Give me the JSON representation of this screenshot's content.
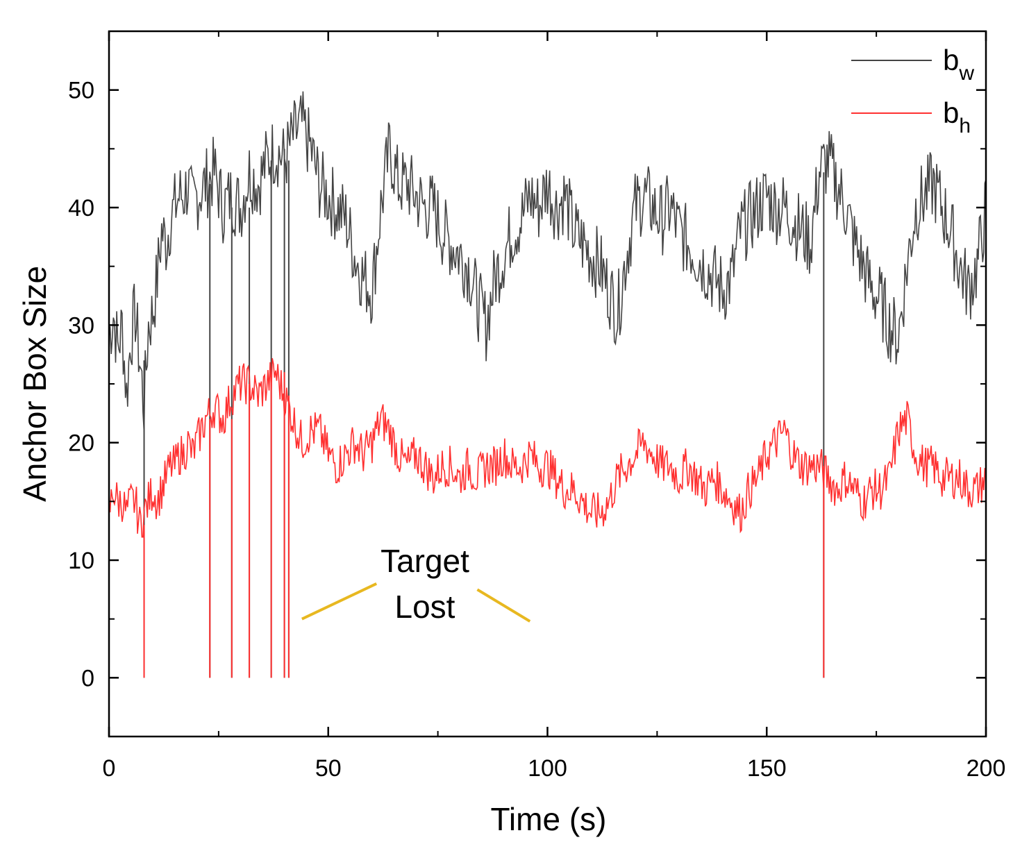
{
  "chart_data": {
    "type": "line",
    "title": "",
    "xlabel": "Time (s)",
    "ylabel": "Anchor Box Size",
    "xlim": [
      0,
      200
    ],
    "ylim": [
      -5,
      55
    ],
    "xticks": [
      0,
      50,
      100,
      150,
      200
    ],
    "yticks": [
      0,
      10,
      20,
      30,
      40,
      50
    ],
    "xtick_labels": [
      "0",
      "50",
      "100",
      "150",
      "200"
    ],
    "ytick_labels": [
      "0",
      "10",
      "20",
      "30",
      "40",
      "50"
    ],
    "grid": false,
    "legend_position": "top-right",
    "series": [
      {
        "name": "b_w",
        "base": "b",
        "sub": "w",
        "color": "#444444",
        "x": [
          0,
          1,
          2,
          3,
          4,
          5,
          6,
          7,
          8,
          9,
          10,
          11,
          12,
          13,
          14,
          15,
          16,
          17,
          18,
          19,
          20,
          22,
          24,
          26,
          28,
          30,
          32,
          34,
          36,
          38,
          40,
          42,
          44,
          46,
          48,
          50,
          52,
          54,
          56,
          58,
          60,
          62,
          64,
          66,
          68,
          70,
          72,
          74,
          76,
          78,
          80,
          82,
          84,
          86,
          88,
          90,
          92,
          94,
          96,
          98,
          100,
          102,
          104,
          106,
          108,
          110,
          112,
          114,
          116,
          118,
          120,
          122,
          124,
          126,
          128,
          130,
          132,
          134,
          136,
          138,
          140,
          142,
          144,
          146,
          148,
          150,
          152,
          154,
          156,
          158,
          160,
          162,
          164,
          166,
          168,
          170,
          172,
          174,
          176,
          178,
          180,
          182,
          184,
          186,
          188,
          190,
          192,
          194,
          196,
          198,
          200
        ],
        "y": [
          29,
          31,
          28,
          30,
          24,
          29,
          31,
          27,
          23,
          30,
          31,
          34,
          38,
          37,
          39,
          40,
          41,
          41,
          42,
          40,
          41,
          42,
          43,
          40,
          41,
          40,
          43,
          42,
          44,
          45,
          44,
          46,
          47,
          45,
          42,
          41,
          40,
          39,
          36,
          34,
          33,
          40,
          45,
          42,
          42,
          41,
          40,
          40,
          38,
          37,
          36,
          35,
          32,
          30,
          34,
          36,
          38,
          39,
          41,
          40,
          42,
          40,
          41,
          38,
          37,
          36,
          35,
          33,
          31,
          36,
          40,
          41,
          40,
          39,
          40,
          38,
          37,
          36,
          35,
          34,
          33,
          34,
          38,
          39,
          40,
          41,
          40,
          40,
          39,
          38,
          37,
          43,
          44,
          42,
          40,
          37,
          35,
          33,
          32,
          30,
          29,
          35,
          40,
          41,
          42,
          40,
          38,
          35,
          33,
          35,
          40
        ],
        "dropouts": [
          [
            8,
            0
          ],
          [
            23,
            0
          ],
          [
            28,
            0
          ],
          [
            32,
            0
          ],
          [
            37,
            0
          ],
          [
            40,
            0
          ],
          [
            41,
            0
          ],
          [
            163,
            0
          ]
        ]
      },
      {
        "name": "b_h",
        "base": "b",
        "sub": "h",
        "color": "#ff3030",
        "x": [
          0,
          1,
          2,
          3,
          4,
          5,
          6,
          7,
          8,
          9,
          10,
          11,
          12,
          13,
          14,
          15,
          16,
          17,
          18,
          19,
          20,
          22,
          24,
          26,
          28,
          30,
          32,
          34,
          36,
          38,
          40,
          42,
          44,
          46,
          48,
          50,
          52,
          54,
          56,
          58,
          60,
          62,
          64,
          66,
          68,
          70,
          72,
          74,
          76,
          78,
          80,
          82,
          84,
          86,
          88,
          90,
          92,
          94,
          96,
          98,
          100,
          102,
          104,
          106,
          108,
          110,
          112,
          114,
          116,
          118,
          120,
          122,
          124,
          126,
          128,
          130,
          132,
          134,
          136,
          138,
          140,
          142,
          144,
          146,
          148,
          150,
          152,
          154,
          156,
          158,
          160,
          162,
          164,
          166,
          168,
          170,
          172,
          174,
          176,
          178,
          180,
          182,
          184,
          186,
          188,
          190,
          192,
          194,
          196,
          198,
          200
        ],
        "y": [
          14,
          16,
          15,
          15,
          14,
          15,
          15,
          13,
          14,
          15,
          16,
          15,
          16,
          17,
          18,
          18,
          19,
          19,
          20,
          19,
          20,
          22,
          23,
          22,
          24,
          25,
          25,
          24,
          25,
          26,
          24,
          22,
          20,
          21,
          21,
          19,
          18,
          19,
          20,
          19,
          20,
          22,
          21,
          19,
          18,
          19,
          18,
          17,
          18,
          18,
          17,
          18,
          17,
          18,
          18,
          19,
          18,
          18,
          19,
          18,
          18,
          17,
          16,
          16,
          15,
          14,
          14,
          15,
          17,
          18,
          19,
          20,
          19,
          18,
          18,
          17,
          18,
          17,
          16,
          17,
          16,
          15,
          14,
          16,
          17,
          19,
          20,
          21,
          19,
          18,
          18,
          18,
          17,
          16,
          17,
          16,
          15,
          16,
          16,
          17,
          21,
          22,
          19,
          18,
          18,
          17,
          17,
          17,
          16,
          16,
          17
        ],
        "dropouts": [
          [
            8,
            0
          ],
          [
            23,
            0
          ],
          [
            28,
            0
          ],
          [
            32,
            0
          ],
          [
            37,
            0
          ],
          [
            40,
            0
          ],
          [
            41,
            0
          ],
          [
            163,
            0
          ]
        ]
      }
    ],
    "annotation": {
      "line1": "Target",
      "line2": "Lost",
      "color": "#e8b820",
      "from_left": [
        44,
        5
      ],
      "to_left": [
        61,
        8
      ],
      "from_right": [
        84,
        7.5
      ],
      "to_right": [
        96,
        4.8
      ]
    }
  }
}
